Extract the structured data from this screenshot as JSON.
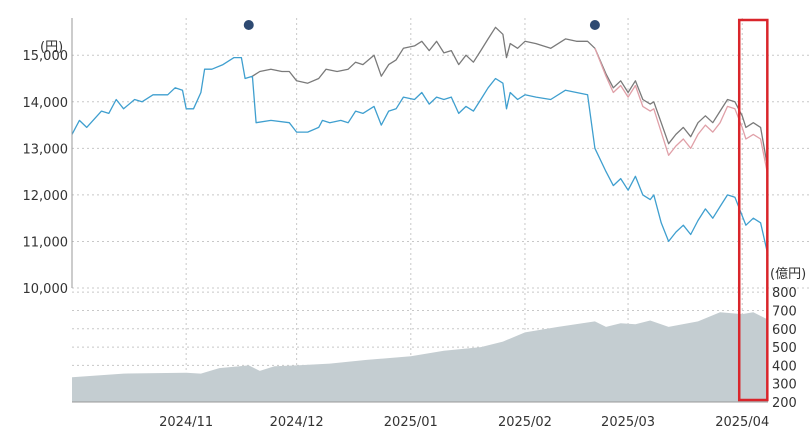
{
  "chart_data": {
    "type": "line",
    "price_panel": {
      "unit_label": "(円)",
      "ylim": [
        10000,
        15800
      ],
      "yticks": [
        {
          "value": 10000,
          "label": "10,000"
        },
        {
          "value": 11000,
          "label": "11,000"
        },
        {
          "value": 12000,
          "label": "12,000"
        },
        {
          "value": 13000,
          "label": "13,000"
        },
        {
          "value": 14000,
          "label": "14,000"
        },
        {
          "value": 15000,
          "label": "15,000"
        }
      ],
      "grid": true
    },
    "volume_panel": {
      "type": "area",
      "unit_label": "(億円)",
      "ylim": [
        200,
        850
      ],
      "yticks": [
        {
          "value": 200,
          "label": "200"
        },
        {
          "value": 300,
          "label": "300"
        },
        {
          "value": 400,
          "label": "400"
        },
        {
          "value": 500,
          "label": "500"
        },
        {
          "value": 600,
          "label": "600"
        },
        {
          "value": 700,
          "label": "700"
        },
        {
          "value": 800,
          "label": "800"
        }
      ],
      "grid": true
    },
    "x_domain": [
      "2024-10-01",
      "2025-04-08"
    ],
    "xticks": [
      {
        "date": "2024-11-01",
        "label": "2024/11"
      },
      {
        "date": "2024-12-01",
        "label": "2024/12"
      },
      {
        "date": "2025-01-01",
        "label": "2025/01"
      },
      {
        "date": "2025-02-01",
        "label": "2025/02"
      },
      {
        "date": "2025-03-01",
        "label": "2025/03"
      },
      {
        "date": "2025-04-01",
        "label": "2025/04"
      }
    ],
    "event_markers": [
      "2024-11-18",
      "2025-02-20"
    ],
    "highlight_range": [
      "2025-04-01",
      "2025-04-07"
    ],
    "series": [
      {
        "color": "#3f9fcf",
        "points": [
          [
            "2024-10-01",
            13300
          ],
          [
            "2024-10-03",
            13600
          ],
          [
            "2024-10-05",
            13450
          ],
          [
            "2024-10-09",
            13800
          ],
          [
            "2024-10-11",
            13750
          ],
          [
            "2024-10-13",
            14050
          ],
          [
            "2024-10-15",
            13850
          ],
          [
            "2024-10-18",
            14050
          ],
          [
            "2024-10-20",
            14000
          ],
          [
            "2024-10-23",
            14150
          ],
          [
            "2024-10-27",
            14150
          ],
          [
            "2024-10-29",
            14300
          ],
          [
            "2024-10-31",
            14250
          ],
          [
            "2024-11-01",
            13850
          ],
          [
            "2024-11-03",
            13850
          ],
          [
            "2024-11-05",
            14200
          ],
          [
            "2024-11-06",
            14700
          ],
          [
            "2024-11-08",
            14700
          ],
          [
            "2024-11-11",
            14800
          ],
          [
            "2024-11-14",
            14950
          ],
          [
            "2024-11-16",
            14950
          ],
          [
            "2024-11-17",
            14500
          ],
          [
            "2024-11-19",
            14550
          ],
          [
            "2024-11-20",
            13550
          ],
          [
            "2024-11-24",
            13600
          ],
          [
            "2024-11-29",
            13550
          ],
          [
            "2024-12-01",
            13350
          ],
          [
            "2024-12-04",
            13350
          ],
          [
            "2024-12-07",
            13450
          ],
          [
            "2024-12-08",
            13600
          ],
          [
            "2024-12-10",
            13550
          ],
          [
            "2024-12-13",
            13600
          ],
          [
            "2024-12-15",
            13550
          ],
          [
            "2024-12-17",
            13800
          ],
          [
            "2024-12-19",
            13750
          ],
          [
            "2024-12-22",
            13900
          ],
          [
            "2024-12-24",
            13500
          ],
          [
            "2024-12-26",
            13800
          ],
          [
            "2024-12-28",
            13850
          ],
          [
            "2024-12-30",
            14100
          ],
          [
            "2025-01-02",
            14050
          ],
          [
            "2025-01-04",
            14200
          ],
          [
            "2025-01-06",
            13950
          ],
          [
            "2025-01-08",
            14100
          ],
          [
            "2025-01-10",
            14050
          ],
          [
            "2025-01-12",
            14100
          ],
          [
            "2025-01-14",
            13750
          ],
          [
            "2025-01-16",
            13900
          ],
          [
            "2025-01-18",
            13800
          ],
          [
            "2025-01-20",
            14050
          ],
          [
            "2025-01-22",
            14300
          ],
          [
            "2025-01-24",
            14500
          ],
          [
            "2025-01-26",
            14400
          ],
          [
            "2025-01-27",
            13850
          ],
          [
            "2025-01-28",
            14200
          ],
          [
            "2025-01-30",
            14050
          ],
          [
            "2025-02-01",
            14150
          ],
          [
            "2025-02-04",
            14100
          ],
          [
            "2025-02-08",
            14050
          ],
          [
            "2025-02-12",
            14250
          ],
          [
            "2025-02-15",
            14200
          ],
          [
            "2025-02-18",
            14150
          ],
          [
            "2025-02-20",
            13000
          ],
          [
            "2025-02-23",
            12500
          ],
          [
            "2025-02-25",
            12200
          ],
          [
            "2025-02-27",
            12350
          ],
          [
            "2025-03-01",
            12100
          ],
          [
            "2025-03-03",
            12400
          ],
          [
            "2025-03-05",
            12000
          ],
          [
            "2025-03-07",
            11900
          ],
          [
            "2025-03-08",
            12000
          ],
          [
            "2025-03-10",
            11400
          ],
          [
            "2025-03-12",
            11000
          ],
          [
            "2025-03-14",
            11200
          ],
          [
            "2025-03-16",
            11350
          ],
          [
            "2025-03-18",
            11150
          ],
          [
            "2025-03-20",
            11450
          ],
          [
            "2025-03-22",
            11700
          ],
          [
            "2025-03-24",
            11500
          ],
          [
            "2025-03-26",
            11750
          ],
          [
            "2025-03-28",
            12000
          ],
          [
            "2025-03-30",
            11950
          ],
          [
            "2025-04-01",
            11550
          ],
          [
            "2025-04-02",
            11350
          ],
          [
            "2025-04-04",
            11500
          ],
          [
            "2025-04-06",
            11400
          ],
          [
            "2025-04-08",
            10700
          ]
        ]
      },
      {
        "color": "#7a7a7a",
        "points": [
          [
            "2024-11-19",
            14550
          ],
          [
            "2024-11-21",
            14650
          ],
          [
            "2024-11-24",
            14700
          ],
          [
            "2024-11-27",
            14650
          ],
          [
            "2024-11-29",
            14650
          ],
          [
            "2024-12-01",
            14450
          ],
          [
            "2024-12-04",
            14400
          ],
          [
            "2024-12-07",
            14500
          ],
          [
            "2024-12-09",
            14700
          ],
          [
            "2024-12-12",
            14650
          ],
          [
            "2024-12-15",
            14700
          ],
          [
            "2024-12-17",
            14850
          ],
          [
            "2024-12-19",
            14800
          ],
          [
            "2024-12-22",
            15000
          ],
          [
            "2024-12-24",
            14550
          ],
          [
            "2024-12-26",
            14800
          ],
          [
            "2024-12-28",
            14900
          ],
          [
            "2024-12-30",
            15150
          ],
          [
            "2025-01-02",
            15200
          ],
          [
            "2025-01-04",
            15300
          ],
          [
            "2025-01-06",
            15100
          ],
          [
            "2025-01-08",
            15300
          ],
          [
            "2025-01-10",
            15050
          ],
          [
            "2025-01-12",
            15100
          ],
          [
            "2025-01-14",
            14800
          ],
          [
            "2025-01-16",
            15000
          ],
          [
            "2025-01-18",
            14850
          ],
          [
            "2025-01-20",
            15100
          ],
          [
            "2025-01-22",
            15350
          ],
          [
            "2025-01-24",
            15600
          ],
          [
            "2025-01-26",
            15450
          ],
          [
            "2025-01-27",
            14950
          ],
          [
            "2025-01-28",
            15250
          ],
          [
            "2025-01-30",
            15150
          ],
          [
            "2025-02-01",
            15300
          ],
          [
            "2025-02-04",
            15250
          ],
          [
            "2025-02-08",
            15150
          ],
          [
            "2025-02-12",
            15350
          ],
          [
            "2025-02-15",
            15300
          ],
          [
            "2025-02-18",
            15300
          ],
          [
            "2025-02-20",
            15150
          ],
          [
            "2025-02-23",
            14600
          ],
          [
            "2025-02-25",
            14300
          ],
          [
            "2025-02-27",
            14450
          ],
          [
            "2025-03-01",
            14200
          ],
          [
            "2025-03-03",
            14450
          ],
          [
            "2025-03-05",
            14050
          ],
          [
            "2025-03-07",
            13950
          ],
          [
            "2025-03-08",
            14000
          ],
          [
            "2025-03-10",
            13550
          ],
          [
            "2025-03-12",
            13100
          ],
          [
            "2025-03-14",
            13300
          ],
          [
            "2025-03-16",
            13450
          ],
          [
            "2025-03-18",
            13250
          ],
          [
            "2025-03-20",
            13550
          ],
          [
            "2025-03-22",
            13700
          ],
          [
            "2025-03-24",
            13550
          ],
          [
            "2025-03-26",
            13800
          ],
          [
            "2025-03-28",
            14050
          ],
          [
            "2025-03-30",
            14000
          ],
          [
            "2025-04-01",
            13700
          ],
          [
            "2025-04-02",
            13450
          ],
          [
            "2025-04-04",
            13550
          ],
          [
            "2025-04-06",
            13450
          ],
          [
            "2025-04-08",
            12550
          ]
        ]
      },
      {
        "color": "#e0a0a8",
        "points": [
          [
            "2025-02-20",
            15150
          ],
          [
            "2025-02-23",
            14550
          ],
          [
            "2025-02-25",
            14200
          ],
          [
            "2025-02-27",
            14350
          ],
          [
            "2025-03-01",
            14100
          ],
          [
            "2025-03-03",
            14350
          ],
          [
            "2025-03-05",
            13900
          ],
          [
            "2025-03-07",
            13800
          ],
          [
            "2025-03-08",
            13850
          ],
          [
            "2025-03-10",
            13350
          ],
          [
            "2025-03-12",
            12850
          ],
          [
            "2025-03-14",
            13050
          ],
          [
            "2025-03-16",
            13200
          ],
          [
            "2025-03-18",
            13000
          ],
          [
            "2025-03-20",
            13300
          ],
          [
            "2025-03-22",
            13500
          ],
          [
            "2025-03-24",
            13350
          ],
          [
            "2025-03-26",
            13550
          ],
          [
            "2025-03-28",
            13900
          ],
          [
            "2025-03-30",
            13850
          ],
          [
            "2025-04-01",
            13450
          ],
          [
            "2025-04-02",
            13200
          ],
          [
            "2025-04-04",
            13300
          ],
          [
            "2025-04-06",
            13200
          ],
          [
            "2025-04-08",
            12400
          ]
        ]
      }
    ],
    "volume": {
      "color": "#c4cdd1",
      "points": [
        [
          "2024-10-01",
          335
        ],
        [
          "2024-10-15",
          355
        ],
        [
          "2024-11-01",
          360
        ],
        [
          "2024-11-05",
          355
        ],
        [
          "2024-11-10",
          385
        ],
        [
          "2024-11-18",
          400
        ],
        [
          "2024-11-21",
          370
        ],
        [
          "2024-11-25",
          395
        ],
        [
          "2024-12-01",
          400
        ],
        [
          "2024-12-10",
          410
        ],
        [
          "2024-12-20",
          430
        ],
        [
          "2025-01-01",
          450
        ],
        [
          "2025-01-10",
          480
        ],
        [
          "2025-01-20",
          500
        ],
        [
          "2025-01-26",
          530
        ],
        [
          "2025-02-01",
          580
        ],
        [
          "2025-02-10",
          610
        ],
        [
          "2025-02-20",
          640
        ],
        [
          "2025-02-23",
          610
        ],
        [
          "2025-02-27",
          630
        ],
        [
          "2025-03-03",
          625
        ],
        [
          "2025-03-07",
          645
        ],
        [
          "2025-03-12",
          610
        ],
        [
          "2025-03-20",
          640
        ],
        [
          "2025-03-26",
          690
        ],
        [
          "2025-04-01",
          680
        ],
        [
          "2025-04-04",
          690
        ],
        [
          "2025-04-08",
          650
        ]
      ]
    }
  }
}
